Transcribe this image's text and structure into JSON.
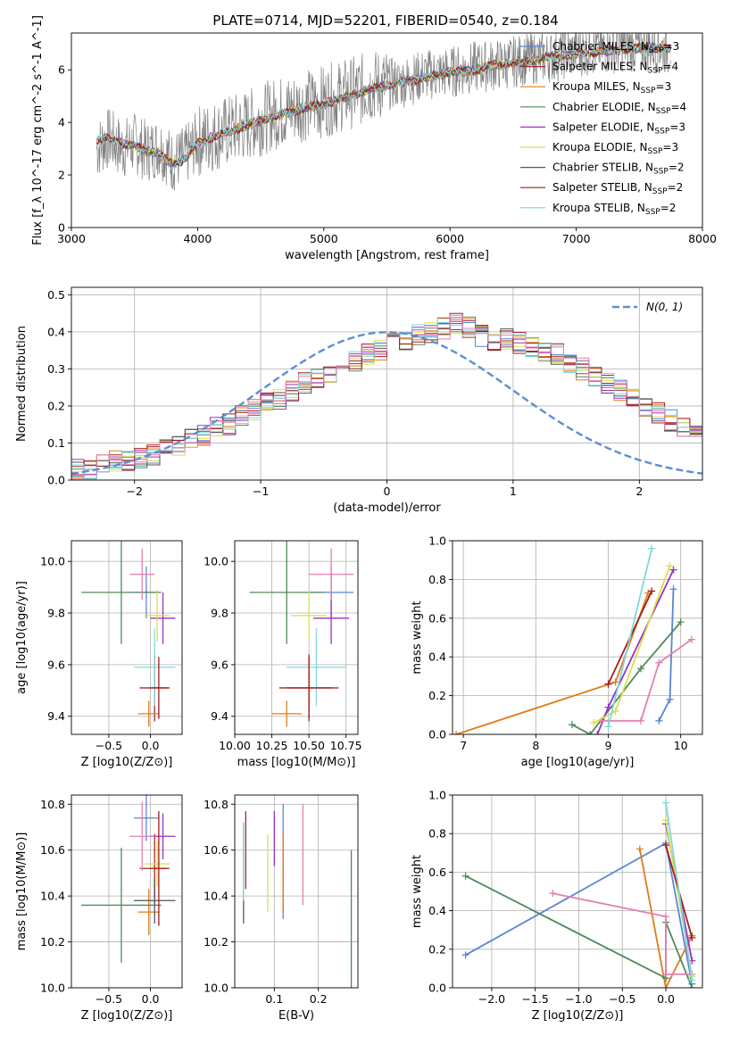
{
  "title": "PLATE=0714, MJD=52201, FIBERID=0540, z=0.184",
  "colors": {
    "Chabrier MILES": "#5b84d4",
    "Salpeter MILES": "#a52a2a",
    "Kroupa MILES": "#e07b1a",
    "Chabrier ELODIE": "#4f8a5b",
    "Salpeter ELODIE": "#9b30c4",
    "Kroupa ELODIE": "#d8e04a",
    "Chabrier STELIB": "#555555",
    "Salpeter STELIB": "#a51c1c",
    "Kroupa STELIB": "#7fd8e0",
    "pink": "#e57fb3",
    "lime": "#b5dc4a",
    "normal": "#5b8fd4",
    "data": "#808080"
  },
  "chart_data": [
    {
      "id": "spectrum",
      "type": "line",
      "xlabel": "wavelength [Angstrom, rest frame]",
      "ylabel": "Flux [f_λ 10^-17 erg cm^-2 s^-1 A^-1]",
      "xlim": [
        3000,
        8000
      ],
      "ylim": [
        0,
        7.4
      ],
      "xticks": [
        "3000",
        "4000",
        "5000",
        "6000",
        "7000",
        "8000"
      ],
      "yticks": [
        "0",
        "2",
        "4",
        "6"
      ],
      "grid": false,
      "legend_position": "upper right",
      "legend": [
        {
          "label": "Chabrier MILES, N",
          "sub": "SSP",
          "suffix": "=3"
        },
        {
          "label": "Salpeter MILES, N",
          "sub": "SSP",
          "suffix": "=4"
        },
        {
          "label": "Kroupa MILES, N",
          "sub": "SSP",
          "suffix": "=3"
        },
        {
          "label": "Chabrier ELODIE, N",
          "sub": "SSP",
          "suffix": "=4"
        },
        {
          "label": "Salpeter ELODIE, N",
          "sub": "SSP",
          "suffix": "=3"
        },
        {
          "label": "Kroupa ELODIE, N",
          "sub": "SSP",
          "suffix": "=3"
        },
        {
          "label": "Chabrier STELIB, N",
          "sub": "SSP",
          "suffix": "=2"
        },
        {
          "label": "Salpeter STELIB, N",
          "sub": "SSP",
          "suffix": "=2"
        },
        {
          "label": "Kroupa STELIB, N",
          "sub": "SSP",
          "suffix": "=2"
        }
      ],
      "series": [
        {
          "kind": "data",
          "x": [
            3200,
            3300,
            3400,
            3500,
            3600,
            3700,
            3800,
            3900,
            4000,
            4200,
            4400,
            4600,
            4800,
            5000,
            5200,
            5400,
            5600,
            5800,
            6000,
            6200,
            6400,
            6600,
            6800,
            7000,
            7200,
            7400,
            7600,
            7700
          ],
          "y": [
            3.0,
            3.4,
            3.0,
            3.2,
            2.9,
            3.1,
            2.5,
            2.7,
            3.3,
            3.6,
            3.9,
            4.3,
            4.6,
            4.8,
            5.1,
            5.4,
            5.5,
            5.8,
            5.9,
            6.1,
            6.2,
            6.4,
            6.5,
            6.7,
            6.8,
            6.9,
            6.9,
            6.8
          ]
        },
        {
          "kind": "model",
          "x": [
            3200,
            3300,
            3400,
            3500,
            3600,
            3700,
            3800,
            3900,
            4000,
            4200,
            4400,
            4600,
            4800,
            5000,
            5200,
            5400,
            5600,
            5800,
            6000,
            6200,
            6400,
            6600,
            6800,
            7000,
            7200,
            7400,
            7600,
            7700
          ],
          "y": [
            3.3,
            3.4,
            3.2,
            3.1,
            2.9,
            2.8,
            2.4,
            2.6,
            3.2,
            3.6,
            3.9,
            4.2,
            4.5,
            4.7,
            5.0,
            5.3,
            5.5,
            5.7,
            5.9,
            6.0,
            6.2,
            6.3,
            6.5,
            6.6,
            6.7,
            6.8,
            6.85,
            6.8
          ]
        }
      ]
    },
    {
      "id": "residuals",
      "type": "line",
      "xlabel": "(data-model)/error",
      "ylabel": "Normed distribution",
      "xlim": [
        -2.5,
        2.5
      ],
      "ylim": [
        0,
        0.52
      ],
      "xticks": [
        "−2",
        "−1",
        "0",
        "1",
        "2"
      ],
      "yticks": [
        "0.0",
        "0.1",
        "0.2",
        "0.3",
        "0.4",
        "0.5"
      ],
      "grid": true,
      "legend_position": "upper right",
      "legend_label": "N(0, 1)",
      "bin_width": 0.1,
      "histogram": [
        0.03,
        0.03,
        0.04,
        0.05,
        0.05,
        0.06,
        0.07,
        0.08,
        0.09,
        0.11,
        0.12,
        0.14,
        0.15,
        0.17,
        0.19,
        0.21,
        0.22,
        0.24,
        0.26,
        0.27,
        0.29,
        0.3,
        0.32,
        0.34,
        0.35,
        0.37,
        0.38,
        0.39,
        0.4,
        0.41,
        0.42,
        0.41,
        0.39,
        0.38,
        0.38,
        0.37,
        0.36,
        0.35,
        0.34,
        0.32,
        0.3,
        0.28,
        0.26,
        0.24,
        0.22,
        0.2,
        0.18,
        0.16,
        0.14,
        0.12
      ]
    },
    {
      "id": "age-vs-z",
      "type": "scatter",
      "xlabel": "Z [log10(Z/Z⊙)]",
      "ylabel": "age [log10(age/yr)]",
      "xlim": [
        -0.95,
        0.38
      ],
      "ylim": [
        9.33,
        10.08
      ],
      "xticks": [
        "−0.5",
        "0.0"
      ],
      "yticks": [
        "9.4",
        "9.6",
        "9.8",
        "10.0"
      ],
      "grid": true,
      "points": [
        {
          "c": "Chabrier MILES",
          "x": -0.05,
          "y": 9.88,
          "xe": 0.15,
          "ye": 0.1
        },
        {
          "c": "Salpeter MILES",
          "x": 0.05,
          "y": 9.51,
          "xe": 0.18,
          "ye": 0.13
        },
        {
          "c": "Kroupa MILES",
          "x": -0.02,
          "y": 9.41,
          "xe": 0.13,
          "ye": 0.05
        },
        {
          "c": "Chabrier ELODIE",
          "x": -0.35,
          "y": 9.88,
          "xe": 0.48,
          "ye": 0.2
        },
        {
          "c": "Salpeter ELODIE",
          "x": 0.15,
          "y": 9.78,
          "xe": 0.15,
          "ye": 0.1
        },
        {
          "c": "Kroupa ELODIE",
          "x": 0.08,
          "y": 9.79,
          "xe": 0.15,
          "ye": 0.1
        },
        {
          "c": "pink",
          "x": -0.1,
          "y": 9.95,
          "xe": 0.15,
          "ye": 0.1
        },
        {
          "c": "Kroupa STELIB",
          "x": 0.05,
          "y": 9.59,
          "xe": 0.25,
          "ye": 0.15
        },
        {
          "c": "Salpeter STELIB",
          "x": 0.1,
          "y": 9.51,
          "xe": 0.1,
          "ye": 0.12
        }
      ]
    },
    {
      "id": "age-vs-mass",
      "type": "scatter",
      "xlabel": "mass [log10(M/M⊙)]",
      "ylabel": "",
      "xlim": [
        10.0,
        10.83
      ],
      "ylim": [
        9.33,
        10.08
      ],
      "xticks": [
        "10.00",
        "10.25",
        "10.50",
        "10.75"
      ],
      "yticks": [
        "9.4",
        "9.6",
        "9.8",
        "10.0"
      ],
      "grid": true,
      "points": [
        {
          "c": "Chabrier MILES",
          "x": 10.65,
          "y": 9.88,
          "xe": 0.15,
          "ye": 0.1
        },
        {
          "c": "Salpeter MILES",
          "x": 10.5,
          "y": 9.51,
          "xe": 0.2,
          "ye": 0.13
        },
        {
          "c": "Kroupa MILES",
          "x": 10.35,
          "y": 9.41,
          "xe": 0.1,
          "ye": 0.05
        },
        {
          "c": "Chabrier ELODIE",
          "x": 10.35,
          "y": 9.88,
          "xe": 0.25,
          "ye": 0.2
        },
        {
          "c": "Salpeter ELODIE",
          "x": 10.65,
          "y": 9.78,
          "xe": 0.12,
          "ye": 0.1
        },
        {
          "c": "Kroupa ELODIE",
          "x": 10.5,
          "y": 9.79,
          "xe": 0.12,
          "ye": 0.1
        },
        {
          "c": "pink",
          "x": 10.65,
          "y": 9.95,
          "xe": 0.15,
          "ye": 0.1
        },
        {
          "c": "Kroupa STELIB",
          "x": 10.55,
          "y": 9.59,
          "xe": 0.2,
          "ye": 0.15
        },
        {
          "c": "Salpeter STELIB",
          "x": 10.5,
          "y": 9.51,
          "xe": 0.15,
          "ye": 0.12
        }
      ]
    },
    {
      "id": "weight-vs-age",
      "type": "line",
      "xlabel": "age [log10(age/yr)]",
      "ylabel": "mass weight",
      "xlim": [
        6.85,
        10.3
      ],
      "ylim": [
        0,
        1.0
      ],
      "xticks": [
        "7",
        "8",
        "9",
        "10"
      ],
      "yticks": [
        "0.0",
        "0.2",
        "0.4",
        "0.6",
        "0.8",
        "1.0"
      ],
      "grid": true,
      "series": [
        {
          "c": "Chabrier MILES",
          "x": [
            9.7,
            9.85,
            9.9
          ],
          "y": [
            0.07,
            0.18,
            0.75
          ]
        },
        {
          "c": "Kroupa MILES",
          "x": [
            6.9,
            9.1,
            9.55
          ],
          "y": [
            0.0,
            0.27,
            0.73
          ]
        },
        {
          "c": "Chabrier ELODIE",
          "x": [
            8.5,
            8.75,
            9.45,
            10.0
          ],
          "y": [
            0.05,
            0.0,
            0.34,
            0.58
          ]
        },
        {
          "c": "Salpeter ELODIE",
          "x": [
            8.85,
            9.0,
            9.9
          ],
          "y": [
            0.0,
            0.14,
            0.85
          ]
        },
        {
          "c": "pink",
          "x": [
            8.9,
            9.45,
            9.7,
            10.15
          ],
          "y": [
            0.07,
            0.07,
            0.37,
            0.49
          ]
        },
        {
          "c": "Kroupa ELODIE",
          "x": [
            8.8,
            9.1,
            9.85
          ],
          "y": [
            0.06,
            0.12,
            0.87
          ]
        },
        {
          "c": "Salpeter STELIB",
          "x": [
            9.0,
            9.6
          ],
          "y": [
            0.26,
            0.74
          ]
        },
        {
          "c": "Kroupa STELIB",
          "x": [
            9.0,
            9.6
          ],
          "y": [
            0.04,
            0.96
          ]
        }
      ]
    },
    {
      "id": "mass-vs-z",
      "type": "scatter",
      "xlabel": "Z [log10(Z/Z⊙)]",
      "ylabel": "mass [log10(M/M⊙)]",
      "xlim": [
        -0.95,
        0.38
      ],
      "ylim": [
        10.0,
        10.84
      ],
      "xticks": [
        "−0.5",
        "0.0"
      ],
      "yticks": [
        "10.0",
        "10.2",
        "10.4",
        "10.6",
        "10.8"
      ],
      "grid": true,
      "points": [
        {
          "c": "Chabrier MILES",
          "x": -0.05,
          "y": 10.74,
          "xe": 0.15,
          "ye": 0.1
        },
        {
          "c": "Salpeter MILES",
          "x": 0.05,
          "y": 10.52,
          "xe": 0.18,
          "ye": 0.15
        },
        {
          "c": "Kroupa MILES",
          "x": -0.02,
          "y": 10.33,
          "xe": 0.13,
          "ye": 0.1
        },
        {
          "c": "Chabrier ELODIE",
          "x": -0.35,
          "y": 10.36,
          "xe": 0.48,
          "ye": 0.25
        },
        {
          "c": "Salpeter ELODIE",
          "x": 0.15,
          "y": 10.66,
          "xe": 0.15,
          "ye": 0.1
        },
        {
          "c": "Kroupa ELODIE",
          "x": 0.08,
          "y": 10.54,
          "xe": 0.15,
          "ye": 0.1
        },
        {
          "c": "pink",
          "x": -0.1,
          "y": 10.66,
          "xe": 0.15,
          "ye": 0.15
        },
        {
          "c": "Chabrier STELIB",
          "x": 0.05,
          "y": 10.38,
          "xe": 0.25,
          "ye": 0.1
        },
        {
          "c": "Salpeter STELIB",
          "x": 0.1,
          "y": 10.52,
          "xe": 0.1,
          "ye": 0.25
        }
      ]
    },
    {
      "id": "mass-vs-ebv",
      "type": "scatter",
      "xlabel": "E(B-V)",
      "ylabel": "",
      "xlim": [
        0.01,
        0.29
      ],
      "ylim": [
        10.0,
        10.84
      ],
      "xticks": [
        "0.1",
        "0.2"
      ],
      "yticks": [
        "10.0",
        "10.2",
        "10.4",
        "10.6",
        "10.8"
      ],
      "grid": true,
      "points": [
        {
          "c": "Chabrier MILES",
          "x": 0.12,
          "y": 10.55,
          "xe": 0,
          "ye": 0.25
        },
        {
          "c": "Salpeter MILES",
          "x": 0.035,
          "y": 10.6,
          "xe": 0,
          "ye": 0.17
        },
        {
          "c": "Kroupa MILES",
          "x": 0.12,
          "y": 10.5,
          "xe": 0,
          "ye": 0.17
        },
        {
          "c": "Chabrier ELODIE",
          "x": 0.275,
          "y": 10.3,
          "xe": 0,
          "ye": 0.3
        },
        {
          "c": "Salpeter ELODIE",
          "x": 0.1,
          "y": 10.65,
          "xe": 0,
          "ye": 0.12
        },
        {
          "c": "Kroupa ELODIE",
          "x": 0.085,
          "y": 10.5,
          "xe": 0,
          "ye": 0.17
        },
        {
          "c": "pink",
          "x": 0.165,
          "y": 10.58,
          "xe": 0,
          "ye": 0.22
        },
        {
          "c": "Chabrier STELIB",
          "x": 0.03,
          "y": 10.5,
          "xe": 0,
          "ye": 0.22
        },
        {
          "c": "Kroupa STELIB",
          "x": 0.03,
          "y": 10.55,
          "xe": 0,
          "ye": 0.17
        }
      ]
    },
    {
      "id": "weight-vs-z",
      "type": "line",
      "xlabel": "Z [log10(Z/Z⊙)]",
      "ylabel": "mass weight",
      "xlim": [
        -2.45,
        0.42
      ],
      "ylim": [
        0,
        1.0
      ],
      "xticks": [
        "−2.0",
        "−1.5",
        "−1.0",
        "−0.5",
        "0.0"
      ],
      "yticks": [
        "0.0",
        "0.2",
        "0.4",
        "0.6",
        "0.8",
        "1.0"
      ],
      "grid": true,
      "series": [
        {
          "c": "Chabrier MILES",
          "x": [
            -2.3,
            0.0,
            0.3
          ],
          "y": [
            0.17,
            0.75,
            0.02
          ]
        },
        {
          "c": "Kroupa MILES",
          "x": [
            -0.3,
            0.0,
            0.3
          ],
          "y": [
            0.72,
            0.0,
            0.27
          ]
        },
        {
          "c": "Chabrier ELODIE",
          "x": [
            -2.3,
            0.0,
            0.0,
            0.3
          ],
          "y": [
            0.58,
            0.05,
            0.34,
            0.0
          ]
        },
        {
          "c": "pink",
          "x": [
            -1.3,
            0.0,
            0.0,
            0.3
          ],
          "y": [
            0.49,
            0.37,
            0.07,
            0.07
          ]
        },
        {
          "c": "Salpeter ELODIE",
          "x": [
            0.0,
            0.3
          ],
          "y": [
            0.85,
            0.14
          ]
        },
        {
          "c": "Kroupa ELODIE",
          "x": [
            0.0,
            0.3
          ],
          "y": [
            0.87,
            0.06
          ]
        },
        {
          "c": "Salpeter STELIB",
          "x": [
            0.0,
            0.3
          ],
          "y": [
            0.74,
            0.26
          ]
        },
        {
          "c": "Kroupa STELIB",
          "x": [
            0.0,
            0.3
          ],
          "y": [
            0.96,
            0.04
          ]
        }
      ]
    }
  ]
}
